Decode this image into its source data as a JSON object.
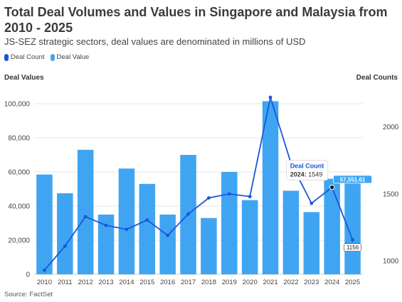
{
  "header": {
    "title": "Total Deal Volumes and Values in Singapore and Malaysia from 2010 - 2025",
    "subtitle": "JS-SEZ strategic sectors, deal values are denominated in millions of USD"
  },
  "footer": {
    "source": "Source: FactSet"
  },
  "colors": {
    "deal_value": "#3fa5f2",
    "deal_count": "#1a56db",
    "grid": "#e6e6e6"
  },
  "chart_data": {
    "type": "bar",
    "title": "Total Deal Volumes and Values in Singapore and Malaysia from 2010 - 2025",
    "subtitle": "JS-SEZ strategic sectors, deal values are denominated in millions of USD",
    "categories": [
      "2010",
      "2011",
      "2012",
      "2013",
      "2014",
      "2015",
      "2016",
      "2017",
      "2018",
      "2019",
      "2020",
      "2021",
      "2022",
      "2023",
      "2024",
      "2025"
    ],
    "ylabel": "Deal Values",
    "y2label": "Deal Counts",
    "ylim": [
      0,
      110000
    ],
    "y2lim": [
      900,
      2300
    ],
    "yticks": [
      0,
      20000,
      40000,
      60000,
      80000,
      100000
    ],
    "ytick_labels": [
      "0",
      "20,000",
      "40,000",
      "60,000",
      "80,000",
      "100,000"
    ],
    "y2ticks": [
      1000,
      1500,
      2000
    ],
    "y2tick_labels": [
      "1000",
      "1500",
      "2000"
    ],
    "grid": true,
    "legend_position": "top-left",
    "series": [
      {
        "name": "Deal Value",
        "type": "bar",
        "axis": "left",
        "values": [
          58500,
          47500,
          73000,
          35000,
          62000,
          53000,
          35000,
          70000,
          33000,
          60000,
          43500,
          101500,
          49000,
          36500,
          56000,
          57551.61
        ]
      },
      {
        "name": "Deal Count",
        "type": "line",
        "axis": "right",
        "values": [
          930,
          1110,
          1330,
          1265,
          1235,
          1305,
          1190,
          1350,
          1470,
          1500,
          1480,
          2220,
          1730,
          1430,
          1549,
          1156
        ]
      }
    ],
    "data_labels": {
      "last_bar": "57,551.61",
      "last_point": "1156"
    },
    "tooltip": {
      "series": "Deal Count",
      "year": "2024",
      "value": "1549",
      "separator": ":"
    }
  }
}
